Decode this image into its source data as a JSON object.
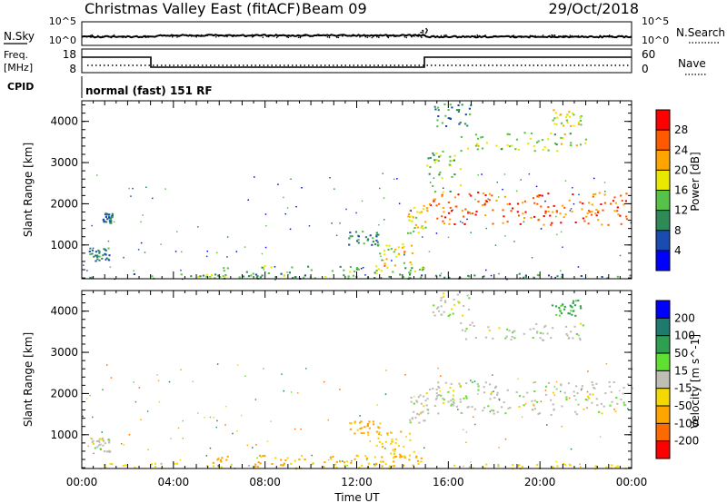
{
  "header": {
    "title": "Christmas Valley East (fitACF)",
    "beam": "Beam 09",
    "date": "29/Oct/2018"
  },
  "noise_panel": {
    "left_label": "N.Sky",
    "right_label": "N.Search",
    "left_tick_top": "10^5",
    "left_tick_bottom": "10^0",
    "right_tick_top": "10^5",
    "right_tick_bottom": "10^0"
  },
  "freq_panel": {
    "left_label_1": "Freq.",
    "left_label_2": "[MHz]",
    "right_label": "Nave",
    "left_ticks": [
      "18",
      "8"
    ],
    "right_ticks": [
      "60",
      "0"
    ]
  },
  "cpid_panel": {
    "label": "CPID",
    "value": "normal (fast) 151 RF"
  },
  "colors": {
    "power_scale": [
      "#0000ff",
      "#1a4bb0",
      "#2e8b57",
      "#57c24a",
      "#e8e800",
      "#ffa500",
      "#ff5a00",
      "#ff0000"
    ],
    "velocity_scale": [
      "#ff0000",
      "#ff6a00",
      "#ffa500",
      "#f5d800",
      "#bebeb4",
      "#60e030",
      "#2e9e50",
      "#1e7a6e",
      "#0000ff"
    ],
    "ground_scatter": "#bebeb4"
  },
  "chart_data": [
    {
      "type": "heatmap",
      "name": "power",
      "ylabel": "Slant Range [km]",
      "yticks": [
        "1000",
        "2000",
        "3000",
        "4000"
      ],
      "ylim": [
        180,
        4500
      ],
      "xlim_hours": [
        0,
        24
      ],
      "colorbar": {
        "label": "Power [dB]",
        "ticks": [
          "4",
          "8",
          "12",
          "16",
          "20",
          "24",
          "28"
        ],
        "range": [
          0,
          32
        ]
      },
      "features": [
        {
          "t0": 0.2,
          "t1": 24.0,
          "r0": 190,
          "r1": 320,
          "level": 10
        },
        {
          "t0": 5.0,
          "t1": 15.0,
          "r0": 220,
          "r1": 520,
          "level": 14
        },
        {
          "t0": 0.3,
          "t1": 1.2,
          "r0": 600,
          "r1": 950,
          "level": 9
        },
        {
          "t0": 0.9,
          "t1": 1.3,
          "r0": 1550,
          "r1": 1800,
          "level": 8
        },
        {
          "t0": 11.5,
          "t1": 13.0,
          "r0": 1000,
          "r1": 1350,
          "level": 9
        },
        {
          "t0": 12.8,
          "t1": 14.5,
          "r0": 500,
          "r1": 1100,
          "level": 20
        },
        {
          "t0": 14.2,
          "t1": 15.1,
          "r0": 1300,
          "r1": 2000,
          "level": 18
        },
        {
          "t0": 15.0,
          "t1": 24.0,
          "r0": 1500,
          "r1": 2300,
          "level": 26
        },
        {
          "t0": 15.0,
          "t1": 16.5,
          "r0": 2300,
          "r1": 3300,
          "level": 14
        },
        {
          "t0": 16.5,
          "t1": 22.0,
          "r0": 3300,
          "r1": 3750,
          "level": 16
        },
        {
          "t0": 15.3,
          "t1": 17.0,
          "r0": 3900,
          "r1": 4450,
          "level": 10
        },
        {
          "t0": 20.5,
          "t1": 21.8,
          "r0": 3900,
          "r1": 4300,
          "level": 18
        }
      ]
    },
    {
      "type": "heatmap",
      "name": "velocity",
      "ylabel": "Slant Range [km]",
      "yticks": [
        "1000",
        "2000",
        "3000",
        "4000"
      ],
      "ylim": [
        180,
        4500
      ],
      "xlim_hours": [
        0,
        24
      ],
      "xlabel": "Time UT",
      "xticks": [
        "00:00",
        "04:00",
        "08:00",
        "12:00",
        "16:00",
        "20:00",
        "00:00"
      ],
      "colorbar": {
        "label": "Velocity [m s^-1]",
        "ticks": [
          "200",
          "100",
          "50",
          "15",
          "-15",
          "-50",
          "-100",
          "-200"
        ]
      },
      "features": [
        {
          "t0": 0.2,
          "t1": 24.0,
          "r0": 190,
          "r1": 320,
          "vel": -30
        },
        {
          "t0": 5.0,
          "t1": 15.0,
          "r0": 220,
          "r1": 520,
          "vel": -60
        },
        {
          "t0": 0.3,
          "t1": 1.2,
          "r0": 600,
          "r1": 950,
          "vel": 0
        },
        {
          "t0": 11.5,
          "t1": 13.0,
          "r0": 1000,
          "r1": 1350,
          "vel": -60
        },
        {
          "t0": 12.8,
          "t1": 14.5,
          "r0": 500,
          "r1": 1100,
          "vel": -40
        },
        {
          "t0": 14.2,
          "t1": 15.1,
          "r0": 1300,
          "r1": 2000,
          "vel": 0
        },
        {
          "t0": 15.0,
          "t1": 24.0,
          "r0": 1500,
          "r1": 2300,
          "vel": 0
        },
        {
          "t0": 16.5,
          "t1": 22.0,
          "r0": 3300,
          "r1": 3750,
          "vel": 0
        },
        {
          "t0": 15.3,
          "t1": 17.0,
          "r0": 3900,
          "r1": 4450,
          "vel": 0
        },
        {
          "t0": 20.5,
          "t1": 21.8,
          "r0": 3900,
          "r1": 4300,
          "vel": 60
        }
      ]
    }
  ]
}
